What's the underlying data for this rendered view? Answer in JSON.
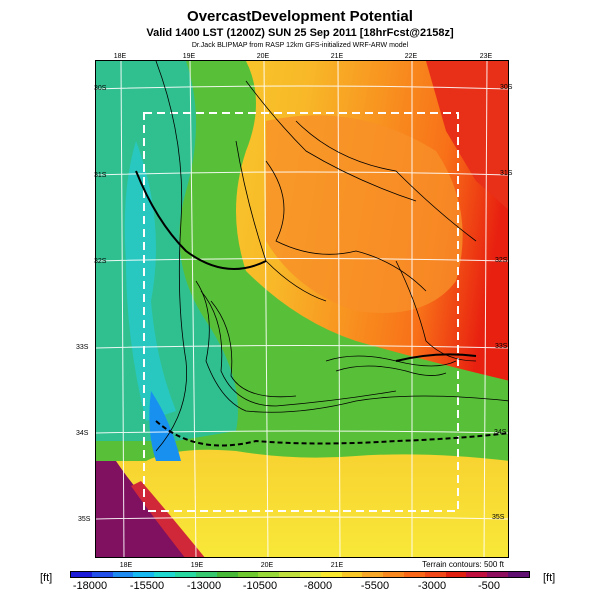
{
  "header": {
    "title": "OvercastDevelopment Potential",
    "subtitle": "Valid 1400 LST (1200Z) SUN 25 Sep 2011 [18hrFcst@2158z]",
    "credit": "Dr.Jack BLIPMAP from RASP 12km GFS-initialized WRF-ARW model"
  },
  "map": {
    "lon_labels_top": [
      "18E",
      "19E",
      "20E",
      "21E",
      "22E",
      "23E"
    ],
    "lon_labels_bottom": [
      "18E",
      "19E",
      "20E",
      "21E"
    ],
    "lat_labels_left": [
      "30S",
      "31S",
      "32S",
      "33S",
      "34S",
      "35S"
    ],
    "lat_labels_right": [
      "30S",
      "31S",
      "32S",
      "33S",
      "34S",
      "35S"
    ],
    "contour_note": "Terrain contours: 500 ft"
  },
  "legend": {
    "unit_left": "[ft]",
    "unit_right": "[ft]",
    "ticks": [
      "-18000",
      "-15500",
      "-13000",
      "-10500",
      "-8000",
      "-5500",
      "-3000",
      "-500"
    ],
    "colors": [
      "#1b1bd8",
      "#2250e8",
      "#1f8af0",
      "#18b8f0",
      "#20d8d0",
      "#28d8a0",
      "#38c870",
      "#48b838",
      "#70c830",
      "#98d838",
      "#c0e040",
      "#e0e840",
      "#f8e830",
      "#f8c828",
      "#f8a828",
      "#f88820",
      "#f86818",
      "#f04818",
      "#e02010",
      "#c01040",
      "#901060",
      "#601070"
    ]
  }
}
